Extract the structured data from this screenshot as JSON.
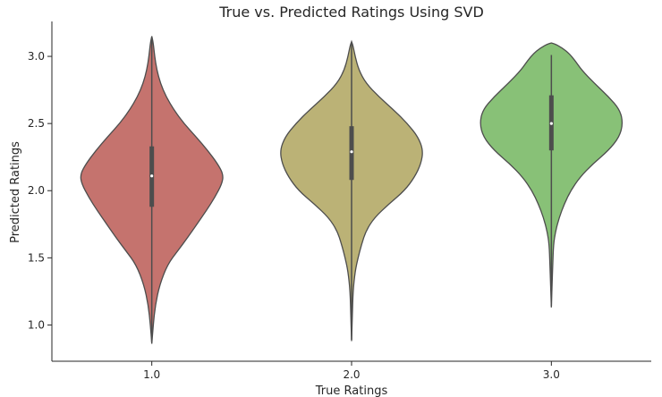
{
  "chart_data": {
    "type": "violin",
    "title": "True vs. Predicted Ratings Using SVD",
    "xlabel": "True Ratings",
    "ylabel": "Predicted Ratings",
    "ylim": [
      0.73,
      3.26
    ],
    "y_ticks": [
      "1.0",
      "1.5",
      "2.0",
      "2.5",
      "3.0"
    ],
    "categories": [
      "1.0",
      "2.0",
      "3.0"
    ],
    "grid": false,
    "series": [
      {
        "category": "1.0",
        "color": "#C5736E",
        "min": 0.87,
        "q1": 1.88,
        "median": 2.11,
        "q3": 2.33,
        "max": 3.15,
        "whisker_low": 0.87,
        "whisker_high": 3.13,
        "density": [
          [
            0.86,
            0.0
          ],
          [
            1.0,
            0.02
          ],
          [
            1.15,
            0.05
          ],
          [
            1.3,
            0.11
          ],
          [
            1.45,
            0.22
          ],
          [
            1.55,
            0.36
          ],
          [
            1.65,
            0.5
          ],
          [
            1.75,
            0.63
          ],
          [
            1.85,
            0.76
          ],
          [
            1.95,
            0.88
          ],
          [
            2.05,
            0.98
          ],
          [
            2.12,
            1.0
          ],
          [
            2.2,
            0.92
          ],
          [
            2.3,
            0.78
          ],
          [
            2.4,
            0.62
          ],
          [
            2.5,
            0.45
          ],
          [
            2.6,
            0.31
          ],
          [
            2.7,
            0.2
          ],
          [
            2.8,
            0.12
          ],
          [
            2.9,
            0.07
          ],
          [
            3.0,
            0.04
          ],
          [
            3.1,
            0.02
          ],
          [
            3.15,
            0.0
          ]
        ]
      },
      {
        "category": "2.0",
        "color": "#BBB276",
        "min": 0.89,
        "q1": 2.08,
        "median": 2.29,
        "q3": 2.48,
        "max": 3.11,
        "whisker_low": 0.89,
        "whisker_high": 3.1,
        "density": [
          [
            0.88,
            0.0
          ],
          [
            1.05,
            0.01
          ],
          [
            1.25,
            0.02
          ],
          [
            1.4,
            0.05
          ],
          [
            1.5,
            0.09
          ],
          [
            1.6,
            0.14
          ],
          [
            1.7,
            0.2
          ],
          [
            1.8,
            0.32
          ],
          [
            1.9,
            0.52
          ],
          [
            2.0,
            0.74
          ],
          [
            2.1,
            0.88
          ],
          [
            2.2,
            0.97
          ],
          [
            2.3,
            1.0
          ],
          [
            2.4,
            0.93
          ],
          [
            2.5,
            0.78
          ],
          [
            2.6,
            0.59
          ],
          [
            2.7,
            0.38
          ],
          [
            2.8,
            0.2
          ],
          [
            2.9,
            0.1
          ],
          [
            3.0,
            0.05
          ],
          [
            3.08,
            0.02
          ],
          [
            3.11,
            0.0
          ]
        ]
      },
      {
        "category": "3.0",
        "color": "#88C177",
        "min": 1.14,
        "q1": 2.3,
        "median": 2.5,
        "q3": 2.71,
        "max": 3.1,
        "whisker_low": 1.14,
        "whisker_high": 3.01,
        "density": [
          [
            1.13,
            0.0
          ],
          [
            1.3,
            0.01
          ],
          [
            1.45,
            0.02
          ],
          [
            1.6,
            0.03
          ],
          [
            1.7,
            0.06
          ],
          [
            1.8,
            0.11
          ],
          [
            1.9,
            0.18
          ],
          [
            2.0,
            0.27
          ],
          [
            2.1,
            0.4
          ],
          [
            2.2,
            0.58
          ],
          [
            2.3,
            0.8
          ],
          [
            2.4,
            0.95
          ],
          [
            2.5,
            1.0
          ],
          [
            2.6,
            0.96
          ],
          [
            2.7,
            0.8
          ],
          [
            2.8,
            0.6
          ],
          [
            2.9,
            0.42
          ],
          [
            2.97,
            0.33
          ],
          [
            3.02,
            0.25
          ],
          [
            3.06,
            0.16
          ],
          [
            3.09,
            0.06
          ],
          [
            3.1,
            0.0
          ]
        ]
      }
    ]
  }
}
